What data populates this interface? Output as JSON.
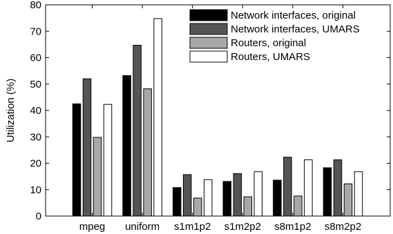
{
  "chart_data": {
    "type": "bar",
    "categories": [
      "mpeg",
      "uniform",
      "s1m1p2",
      "s1m2p2",
      "s8m1p2",
      "s8m2p2"
    ],
    "series": [
      {
        "name": "Network interfaces, original",
        "color": "#000000",
        "values": [
          42.5,
          53.2,
          10.8,
          13.1,
          13.6,
          18.3
        ]
      },
      {
        "name": "Network interfaces, UMARS",
        "color": "#555555",
        "values": [
          52.0,
          64.7,
          15.7,
          16.1,
          22.3,
          21.3
        ]
      },
      {
        "name": "Routers, original",
        "color": "#a8a8a8",
        "values": [
          29.8,
          48.2,
          6.8,
          7.3,
          7.6,
          12.2
        ]
      },
      {
        "name": "Routers, UMARS",
        "color": "#ffffff",
        "values": [
          42.3,
          74.8,
          13.8,
          16.8,
          21.3,
          16.8
        ]
      }
    ],
    "ylabel": "Utilization (%)",
    "xlabel": "",
    "ylim": [
      0,
      80
    ],
    "yticks": [
      0,
      10,
      20,
      30,
      40,
      50,
      60,
      70,
      80
    ],
    "legend": "top-right",
    "grid": false
  }
}
